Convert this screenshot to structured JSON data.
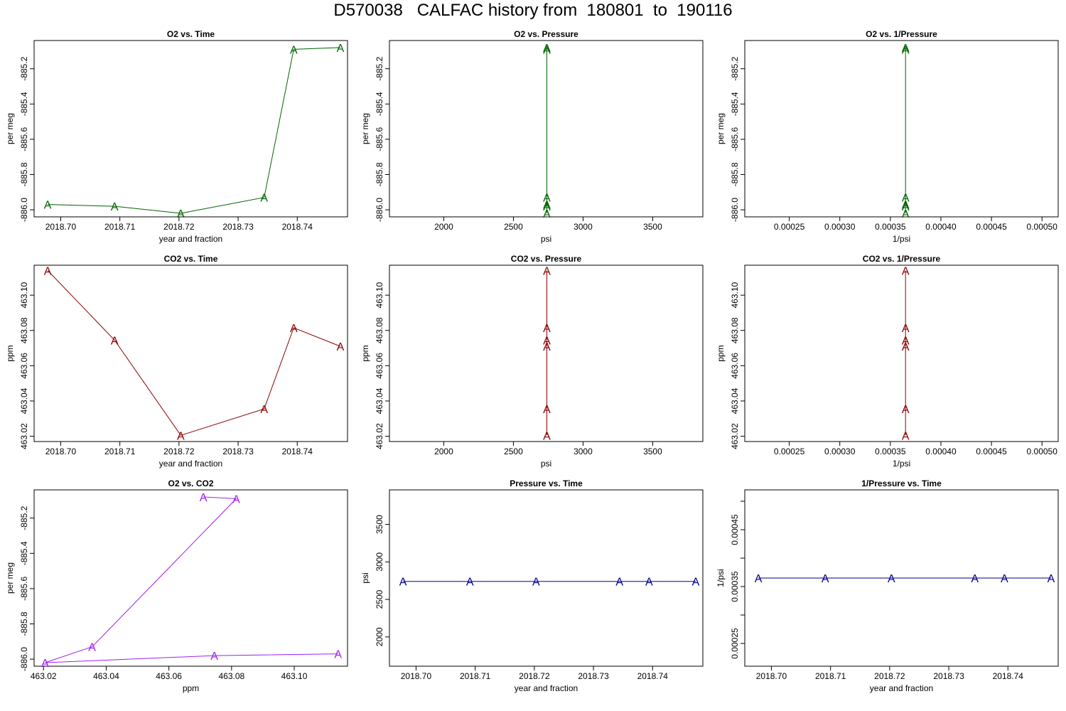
{
  "figure": {
    "title": "D570038   CALFAC history from  180801  to  190116"
  },
  "chart_data": [
    {
      "type": "line",
      "title": "O2 vs. Time",
      "xlabel": "year and fraction",
      "ylabel": "per meg",
      "color": "#006400",
      "marker": "A",
      "xlim": [
        2018.6955,
        2018.7485
      ],
      "ylim": [
        -886.04,
        -885.04
      ],
      "xticks": [
        2018.7,
        2018.71,
        2018.72,
        2018.73,
        2018.74
      ],
      "xtick_labels": [
        "2018.70",
        "2018.71",
        "2018.72",
        "2018.73",
        "2018.74"
      ],
      "yticks": [
        -886.0,
        -885.8,
        -885.6,
        -885.4,
        -885.2
      ],
      "ytick_labels": [
        "-886.0",
        "-885.8",
        "-885.6",
        "-885.4",
        "-885.2"
      ],
      "x": [
        2018.6978,
        2018.7091,
        2018.7203,
        2018.7344,
        2018.7394,
        2018.7473
      ],
      "y": [
        -885.97,
        -885.98,
        -886.02,
        -885.93,
        -885.09,
        -885.08
      ]
    },
    {
      "type": "line",
      "title": "O2 vs. Pressure",
      "xlabel": "psi",
      "ylabel": "per meg",
      "color": "#006400",
      "marker": "A",
      "xlim": [
        1610,
        3860
      ],
      "ylim": [
        -886.04,
        -885.04
      ],
      "xticks": [
        2000,
        2500,
        3000,
        3500
      ],
      "xtick_labels": [
        "2000",
        "2500",
        "3000",
        "3500"
      ],
      "yticks": [
        -886.0,
        -885.8,
        -885.6,
        -885.4,
        -885.2
      ],
      "ytick_labels": [
        "-886.0",
        "-885.8",
        "-885.6",
        "-885.4",
        "-885.2"
      ],
      "x": [
        2740,
        2740,
        2740,
        2740,
        2740,
        2740
      ],
      "y": [
        -885.97,
        -885.98,
        -886.02,
        -885.93,
        -885.09,
        -885.08
      ]
    },
    {
      "type": "line",
      "title": "O2 vs. 1/Pressure",
      "xlabel": "1/psi",
      "ylabel": "per meg",
      "color": "#006400",
      "marker": "A",
      "xlim": [
        0.000206,
        0.000516
      ],
      "ylim": [
        -886.04,
        -885.04
      ],
      "xticks": [
        0.00025,
        0.0003,
        0.00035,
        0.0004,
        0.00045,
        0.0005
      ],
      "xtick_labels": [
        "0.00025",
        "0.00030",
        "0.00035",
        "0.00040",
        "0.00045",
        "0.00050"
      ],
      "yticks": [
        -886.0,
        -885.8,
        -885.6,
        -885.4,
        -885.2
      ],
      "ytick_labels": [
        "-886.0",
        "-885.8",
        "-885.6",
        "-885.4",
        "-885.2"
      ],
      "x": [
        0.000365,
        0.000365,
        0.000365,
        0.000365,
        0.000365,
        0.000365
      ],
      "y": [
        -885.97,
        -885.98,
        -886.02,
        -885.93,
        -885.09,
        -885.08
      ]
    },
    {
      "type": "line",
      "title": "CO2 vs. Time",
      "xlabel": "year and fraction",
      "ylabel": "ppm",
      "color": "#8B0000",
      "marker": "A",
      "xlim": [
        2018.6955,
        2018.7485
      ],
      "ylim": [
        463.017,
        463.117
      ],
      "xticks": [
        2018.7,
        2018.71,
        2018.72,
        2018.73,
        2018.74
      ],
      "xtick_labels": [
        "2018.70",
        "2018.71",
        "2018.72",
        "2018.73",
        "2018.74"
      ],
      "yticks": [
        463.02,
        463.04,
        463.06,
        463.08,
        463.1
      ],
      "ytick_labels": [
        "463.02",
        "463.04",
        "463.06",
        "463.08",
        "463.10"
      ],
      "x": [
        2018.6978,
        2018.7091,
        2018.7203,
        2018.7344,
        2018.7394,
        2018.7473
      ],
      "y": [
        463.114,
        463.0745,
        463.0205,
        463.0355,
        463.0815,
        463.071
      ]
    },
    {
      "type": "line",
      "title": "CO2 vs. Pressure",
      "xlabel": "psi",
      "ylabel": "ppm",
      "color": "#8B0000",
      "marker": "A",
      "xlim": [
        1610,
        3860
      ],
      "ylim": [
        463.017,
        463.117
      ],
      "xticks": [
        2000,
        2500,
        3000,
        3500
      ],
      "xtick_labels": [
        "2000",
        "2500",
        "3000",
        "3500"
      ],
      "yticks": [
        463.02,
        463.04,
        463.06,
        463.08,
        463.1
      ],
      "ytick_labels": [
        "463.02",
        "463.04",
        "463.06",
        "463.08",
        "463.10"
      ],
      "x": [
        2740,
        2740,
        2740,
        2740,
        2740,
        2740
      ],
      "y": [
        463.114,
        463.0745,
        463.0205,
        463.0355,
        463.0815,
        463.071
      ]
    },
    {
      "type": "line",
      "title": "CO2 vs. 1/Pressure",
      "xlabel": "1/psi",
      "ylabel": "ppm",
      "color": "#8B0000",
      "marker": "A",
      "xlim": [
        0.000206,
        0.000516
      ],
      "ylim": [
        463.017,
        463.117
      ],
      "xticks": [
        0.00025,
        0.0003,
        0.00035,
        0.0004,
        0.00045,
        0.0005
      ],
      "xtick_labels": [
        "0.00025",
        "0.00030",
        "0.00035",
        "0.00040",
        "0.00045",
        "0.00050"
      ],
      "yticks": [
        463.02,
        463.04,
        463.06,
        463.08,
        463.1
      ],
      "ytick_labels": [
        "463.02",
        "463.04",
        "463.06",
        "463.08",
        "463.10"
      ],
      "x": [
        0.000365,
        0.000365,
        0.000365,
        0.000365,
        0.000365,
        0.000365
      ],
      "y": [
        463.114,
        463.0745,
        463.0205,
        463.0355,
        463.0815,
        463.071
      ]
    },
    {
      "type": "line",
      "title": "O2 vs. CO2",
      "xlabel": "ppm",
      "ylabel": "per meg",
      "color": "#A020F0",
      "marker": "A",
      "xlim": [
        463.017,
        463.117
      ],
      "ylim": [
        -886.04,
        -885.04
      ],
      "xticks": [
        463.02,
        463.04,
        463.06,
        463.08,
        463.1
      ],
      "xtick_labels": [
        "463.02",
        "463.04",
        "463.06",
        "463.08",
        "463.10"
      ],
      "yticks": [
        -886.0,
        -885.8,
        -885.6,
        -885.4,
        -885.2
      ],
      "ytick_labels": [
        "-886.0",
        "-885.8",
        "-885.6",
        "-885.4",
        "-885.2"
      ],
      "x": [
        463.114,
        463.0745,
        463.0205,
        463.0355,
        463.0815,
        463.071
      ],
      "y": [
        -885.97,
        -885.98,
        -886.02,
        -885.93,
        -885.09,
        -885.08
      ]
    },
    {
      "type": "line",
      "title": "Pressure vs. Time",
      "xlabel": "year and fraction",
      "ylabel": "psi",
      "color": "#00008B",
      "marker": "A",
      "xlim": [
        2018.6955,
        2018.7485
      ],
      "ylim": [
        1610,
        3960
      ],
      "xticks": [
        2018.7,
        2018.71,
        2018.72,
        2018.73,
        2018.74
      ],
      "xtick_labels": [
        "2018.70",
        "2018.71",
        "2018.72",
        "2018.73",
        "2018.74"
      ],
      "yticks": [
        2000,
        2500,
        3000,
        3500
      ],
      "ytick_labels": [
        "2000",
        "2500",
        "3000",
        "3500"
      ],
      "x": [
        2018.6978,
        2018.7091,
        2018.7203,
        2018.7344,
        2018.7394,
        2018.7473
      ],
      "y": [
        2740,
        2740,
        2740,
        2740,
        2740,
        2740
      ]
    },
    {
      "type": "line",
      "title": "1/Pressure vs. Time",
      "xlabel": "year and fraction",
      "ylabel": "1/psi",
      "color": "#00008B",
      "marker": "A",
      "xlim": [
        2018.6955,
        2018.7485
      ],
      "ylim": [
        0.00021,
        0.00052
      ],
      "xticks": [
        2018.7,
        2018.71,
        2018.72,
        2018.73,
        2018.74
      ],
      "xtick_labels": [
        "2018.70",
        "2018.71",
        "2018.72",
        "2018.73",
        "2018.74"
      ],
      "yticks": [
        0.00025,
        0.0003,
        0.00035,
        0.0004,
        0.00045,
        0.0005
      ],
      "ytick_labels": [
        "0.00025",
        "",
        "0.00035",
        "",
        "0.00045",
        ""
      ],
      "x": [
        2018.6978,
        2018.7091,
        2018.7203,
        2018.7344,
        2018.7394,
        2018.7473
      ],
      "y": [
        0.000365,
        0.000365,
        0.000365,
        0.000365,
        0.000365,
        0.000365
      ]
    }
  ]
}
